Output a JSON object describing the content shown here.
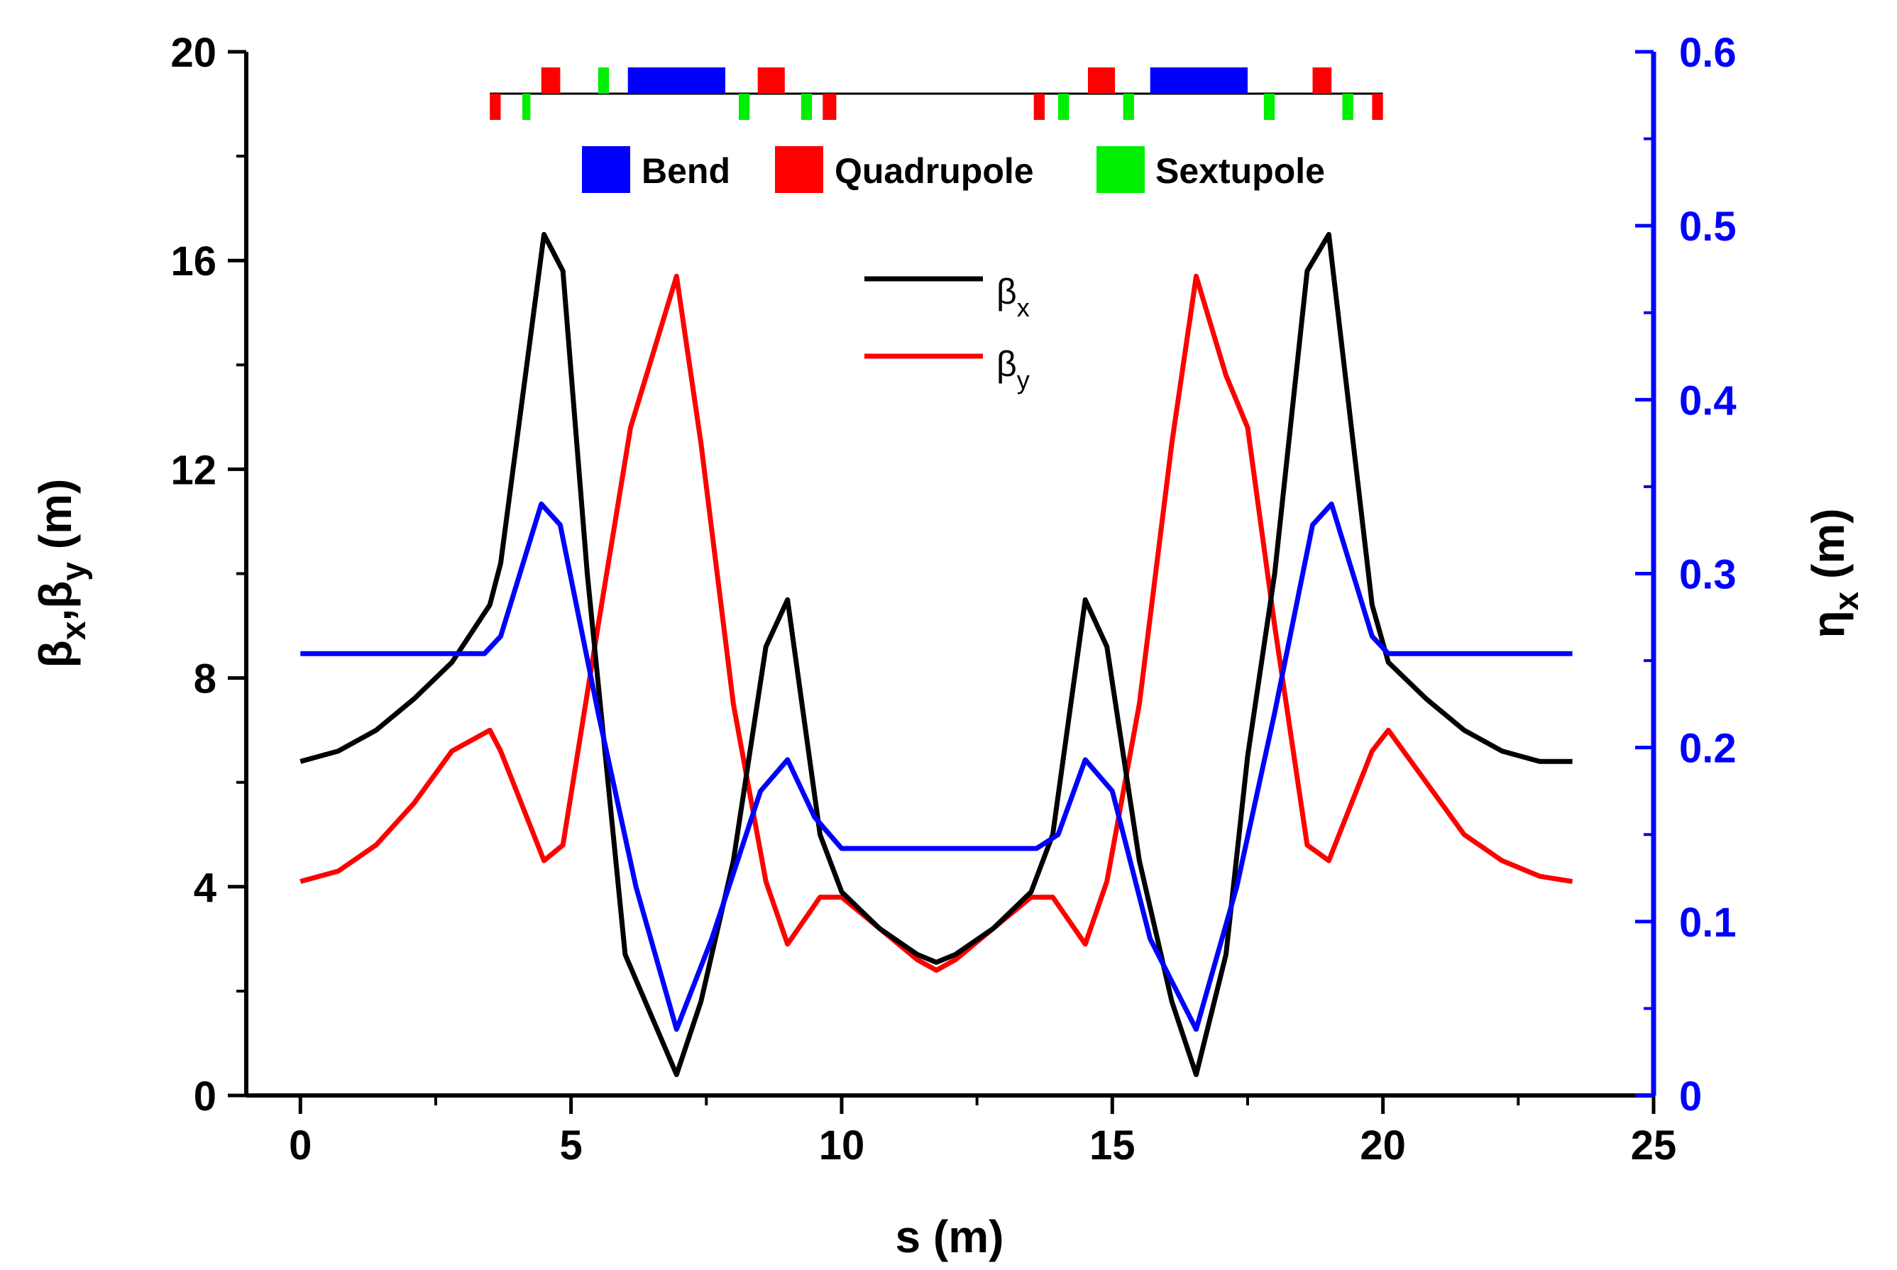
{
  "chart_data": {
    "type": "line",
    "title": "",
    "xlabel": "s (m)",
    "ylabel": {
      "base1": "β",
      "sub1": "x",
      "sep": ",",
      "base2": "β",
      "sub2": "y",
      "unit": " (m)"
    },
    "y2label": {
      "base": "η",
      "sub": "x",
      "unit": " (m)"
    },
    "xlim": [
      -1,
      25
    ],
    "ylim": [
      0,
      20
    ],
    "y2lim": [
      0,
      0.6
    ],
    "xticks": [
      "0",
      "5",
      "10",
      "15",
      "20",
      "25"
    ],
    "yticks": [
      "0",
      "4",
      "8",
      "12",
      "16",
      "20"
    ],
    "y2ticks": [
      "0",
      "0.1",
      "0.2",
      "0.3",
      "0.4",
      "0.5",
      "0.6"
    ],
    "grid": false,
    "legend_position": "top-center",
    "colors": {
      "beta_x": "#000000",
      "beta_y": "#ff0000",
      "eta_x": "#0000ff",
      "bend": "#0000ff",
      "quadrupole": "#ff0000",
      "sextupole": "#00ee00"
    },
    "series": [
      {
        "name": "βx",
        "legend_base": "β",
        "legend_sub": "x",
        "axis": "left",
        "color": "#000000",
        "x": [
          0,
          0.7,
          1.4,
          2.1,
          2.8,
          3.5,
          3.7,
          4.5,
          4.85,
          5.3,
          6.0,
          6.95,
          7.4,
          8.0,
          8.6,
          9.0,
          9.6,
          10.0,
          10.7,
          11.4,
          11.75,
          12.1,
          12.8,
          13.5,
          13.9,
          14.5,
          14.9,
          15.5,
          16.1,
          16.55,
          17.1,
          17.5,
          18.0,
          18.6,
          19.0,
          19.8,
          20.1,
          20.8,
          21.5,
          22.2,
          22.9,
          23.5
        ],
        "values": [
          6.4,
          6.6,
          7.0,
          7.6,
          8.3,
          9.4,
          10.2,
          16.5,
          15.8,
          10.0,
          2.7,
          0.4,
          1.8,
          4.5,
          8.6,
          9.5,
          5.0,
          3.9,
          3.2,
          2.7,
          2.55,
          2.7,
          3.2,
          3.9,
          5.0,
          9.5,
          8.6,
          4.5,
          1.8,
          0.4,
          2.7,
          6.5,
          10.0,
          15.8,
          16.5,
          9.4,
          8.3,
          7.6,
          7.0,
          6.6,
          6.4,
          6.4
        ]
      },
      {
        "name": "βy",
        "legend_base": "β",
        "legend_sub": "y",
        "axis": "left",
        "color": "#ff0000",
        "x": [
          0,
          0.7,
          1.4,
          2.1,
          2.8,
          3.5,
          3.7,
          4.5,
          4.85,
          5.5,
          6.1,
          6.95,
          7.4,
          8.0,
          8.6,
          9.0,
          9.6,
          10.0,
          10.7,
          11.4,
          11.75,
          12.1,
          12.8,
          13.5,
          13.9,
          14.5,
          14.9,
          15.5,
          16.1,
          16.55,
          17.1,
          17.5,
          18.0,
          18.6,
          19.0,
          19.8,
          20.1,
          20.8,
          21.5,
          22.2,
          22.9,
          23.5
        ],
        "values": [
          4.1,
          4.3,
          4.8,
          5.6,
          6.6,
          7.0,
          6.6,
          4.5,
          4.8,
          9.0,
          12.8,
          15.7,
          12.5,
          7.5,
          4.1,
          2.9,
          3.8,
          3.8,
          3.2,
          2.6,
          2.4,
          2.6,
          3.2,
          3.8,
          3.8,
          2.9,
          4.1,
          7.5,
          12.5,
          15.7,
          13.8,
          12.8,
          9.0,
          4.8,
          4.5,
          6.6,
          7.0,
          6.0,
          5.0,
          4.5,
          4.2,
          4.1
        ]
      },
      {
        "name": "ηx",
        "axis": "right",
        "color": "#0000ff",
        "x": [
          0,
          3.4,
          3.7,
          4.45,
          4.8,
          5.5,
          6.2,
          6.95,
          7.6,
          8.5,
          9.0,
          9.5,
          10.0,
          11.0,
          12.0,
          13.0,
          13.6,
          14.0,
          14.5,
          15.0,
          15.7,
          16.55,
          17.3,
          18.0,
          18.7,
          19.05,
          19.8,
          20.1,
          21.5,
          23.5
        ],
        "values": [
          0.254,
          0.254,
          0.264,
          0.34,
          0.328,
          0.22,
          0.12,
          0.038,
          0.09,
          0.175,
          0.193,
          0.16,
          0.142,
          0.142,
          0.142,
          0.142,
          0.142,
          0.15,
          0.193,
          0.175,
          0.09,
          0.038,
          0.12,
          0.22,
          0.328,
          0.34,
          0.264,
          0.254,
          0.254,
          0.254
        ]
      }
    ],
    "lattice": {
      "legend": [
        {
          "name": "Bend",
          "color": "#0000ff"
        },
        {
          "name": "Quadrupole",
          "color": "#ff0000"
        },
        {
          "name": "Sextupole",
          "color": "#00ee00"
        }
      ],
      "range": [
        3.5,
        20.0
      ],
      "elements": [
        {
          "type": "quadrupole",
          "side": "below",
          "s0": 3.5,
          "s1": 3.7
        },
        {
          "type": "sextupole",
          "side": "below",
          "s0": 4.1,
          "s1": 4.25
        },
        {
          "type": "quadrupole",
          "side": "above",
          "s0": 4.45,
          "s1": 4.8
        },
        {
          "type": "sextupole",
          "side": "above",
          "s0": 5.5,
          "s1": 5.7
        },
        {
          "type": "bend",
          "side": "above",
          "s0": 6.05,
          "s1": 7.85
        },
        {
          "type": "sextupole",
          "side": "below",
          "s0": 8.1,
          "s1": 8.3
        },
        {
          "type": "quadrupole",
          "side": "above",
          "s0": 8.45,
          "s1": 8.95
        },
        {
          "type": "sextupole",
          "side": "below",
          "s0": 9.25,
          "s1": 9.45
        },
        {
          "type": "quadrupole",
          "side": "below",
          "s0": 9.65,
          "s1": 9.9
        },
        {
          "type": "quadrupole",
          "side": "below",
          "s0": 13.55,
          "s1": 13.75
        },
        {
          "type": "sextupole",
          "side": "below",
          "s0": 14.0,
          "s1": 14.2
        },
        {
          "type": "quadrupole",
          "side": "above",
          "s0": 14.55,
          "s1": 15.05
        },
        {
          "type": "sextupole",
          "side": "below",
          "s0": 15.2,
          "s1": 15.4
        },
        {
          "type": "bend",
          "side": "above",
          "s0": 15.7,
          "s1": 17.5
        },
        {
          "type": "sextupole",
          "side": "below",
          "s0": 17.8,
          "s1": 18.0
        },
        {
          "type": "quadrupole",
          "side": "above",
          "s0": 18.7,
          "s1": 19.05
        },
        {
          "type": "sextupole",
          "side": "below",
          "s0": 19.25,
          "s1": 19.45
        },
        {
          "type": "quadrupole",
          "side": "below",
          "s0": 19.8,
          "s1": 20.0
        }
      ]
    }
  }
}
